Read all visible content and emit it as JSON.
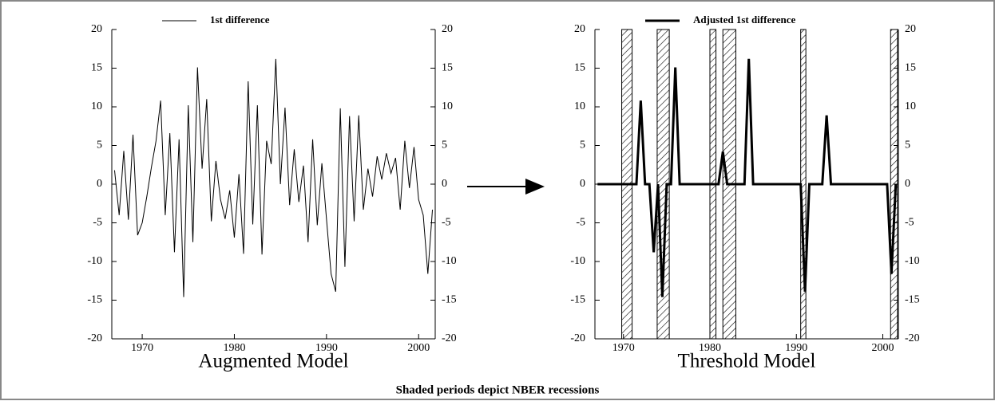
{
  "chart_data": [
    {
      "type": "line",
      "xlabel": "Augmented Model",
      "series": [
        {
          "name": "1st difference",
          "color": "#000000",
          "x": [
            1967.0,
            1967.5,
            1968.0,
            1968.5,
            1969.0,
            1969.5,
            1970.0,
            1970.5,
            1971.0,
            1971.5,
            1972.0,
            1972.5,
            1973.0,
            1973.5,
            1974.0,
            1974.5,
            1975.0,
            1975.5,
            1976.0,
            1976.5,
            1977.0,
            1977.5,
            1978.0,
            1978.5,
            1979.0,
            1979.5,
            1980.0,
            1980.5,
            1981.0,
            1981.5,
            1982.0,
            1982.5,
            1983.0,
            1983.5,
            1984.0,
            1984.5,
            1985.0,
            1985.5,
            1986.0,
            1986.5,
            1987.0,
            1987.5,
            1988.0,
            1988.5,
            1989.0,
            1989.5,
            1990.0,
            1990.5,
            1991.0,
            1991.5,
            1992.0,
            1992.5,
            1993.0,
            1993.5,
            1994.0,
            1994.5,
            1995.0,
            1995.5,
            1996.0,
            1996.5,
            1997.0,
            1997.5,
            1998.0,
            1998.5,
            1999.0,
            1999.5,
            2000.0,
            2000.5,
            2001.0,
            2001.5
          ],
          "values": [
            1.8,
            -4.0,
            4.3,
            -4.6,
            6.4,
            -6.6,
            -5.0,
            -1.6,
            2.2,
            5.6,
            10.8,
            -4.0,
            6.6,
            -8.8,
            5.8,
            -14.6,
            10.2,
            -7.5,
            15.1,
            2.0,
            11.0,
            -4.8,
            3.0,
            -2.0,
            -4.5,
            -0.8,
            -6.9,
            1.3,
            -9.0,
            13.3,
            -5.2,
            10.2,
            -9.1,
            5.6,
            2.6,
            16.2,
            0,
            9.9,
            -2.7,
            4.5,
            -2.3,
            2.4,
            -7.5,
            5.8,
            -5.3,
            2.7,
            -4.5,
            -11.6,
            -13.9,
            9.8,
            -10.7,
            8.8,
            -4.8,
            8.9,
            -3.3,
            2.0,
            -1.6,
            3.6,
            0.6,
            4.0,
            1.4,
            3.4,
            -3.3,
            5.6,
            -0.5,
            4.8,
            -2.0,
            -4.0,
            -11.6,
            -3.3
          ]
        }
      ],
      "xlim": [
        1966.7,
        2001.8
      ],
      "xticks": [
        1970,
        1980,
        1990,
        2000
      ],
      "ylim": [
        -20,
        20
      ],
      "yticks": [
        -20,
        -15,
        -10,
        -5,
        0,
        5,
        10,
        15,
        20
      ],
      "y2lim": [
        -20,
        20
      ],
      "y2ticks": [
        -20,
        -15,
        -10,
        -5,
        0,
        5,
        10,
        15,
        20
      ]
    },
    {
      "type": "line",
      "xlabel": "Threshold Model",
      "series": [
        {
          "name": "Adjusted 1st difference",
          "color": "#000000",
          "x": [
            1967.0,
            1971.5,
            1972.0,
            1972.5,
            1973.0,
            1973.5,
            1974.0,
            1974.5,
            1975.0,
            1975.5,
            1976.0,
            1976.5,
            1981.0,
            1981.5,
            1982.0,
            1984.0,
            1984.5,
            1985.0,
            1990.5,
            1991.0,
            1991.5,
            1993.0,
            1993.5,
            1994.0,
            2000.5,
            2001.0,
            2001.5
          ],
          "values": [
            0,
            0,
            10.8,
            0,
            0,
            -8.8,
            0,
            -14.6,
            0,
            0,
            15.1,
            0,
            0,
            4.2,
            0,
            0,
            16.2,
            0,
            0,
            -13.9,
            0,
            0,
            8.9,
            0,
            0,
            -11.6,
            0
          ]
        }
      ],
      "recessions": [
        [
          1969.8,
          1971.0
        ],
        [
          1973.9,
          1975.3
        ],
        [
          1980.0,
          1980.7
        ],
        [
          1981.5,
          1983.0
        ],
        [
          1990.5,
          1991.1
        ],
        [
          2000.9,
          2001.7
        ]
      ],
      "xlim": [
        1966.7,
        2001.8
      ],
      "xticks": [
        1970,
        1980,
        1990,
        2000
      ],
      "ylim": [
        -20,
        20
      ],
      "yticks": [
        -20,
        -15,
        -10,
        -5,
        0,
        5,
        10,
        15,
        20
      ],
      "y2lim": [
        -20,
        20
      ],
      "y2ticks": [
        -20,
        -15,
        -10,
        -5,
        0,
        5,
        10,
        15,
        20
      ]
    }
  ],
  "caption": "Shaded periods depict NBER recessions"
}
